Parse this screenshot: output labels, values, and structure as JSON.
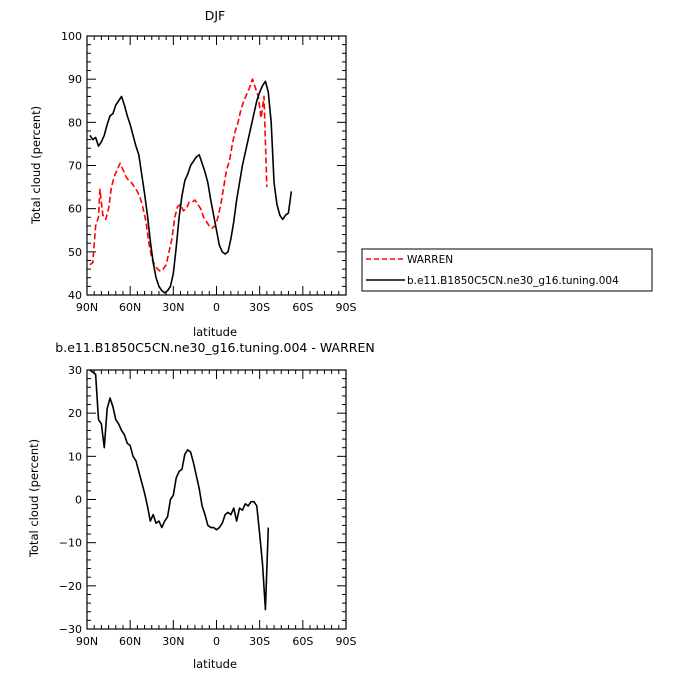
{
  "chart_data": [
    {
      "type": "line",
      "title": "DJF",
      "xlabel": "latitude",
      "ylabel": "Total cloud (percent)",
      "xlim": [
        90,
        -90
      ],
      "ylim": [
        40,
        100
      ],
      "x_tick_labels": [
        "90N",
        "60N",
        "30N",
        "0",
        "30S",
        "60S",
        "90S"
      ],
      "x_tick_values": [
        90,
        60,
        30,
        0,
        -30,
        -60,
        -90
      ],
      "y_tick_values": [
        40,
        50,
        60,
        70,
        80,
        90,
        100
      ],
      "legend_position": "right",
      "series": [
        {
          "name": "WARREN",
          "color": "#ff0000",
          "dash": "dashed",
          "points": [
            [
              88,
              47
            ],
            [
              86,
              47.5
            ],
            [
              84,
              56
            ],
            [
              82,
              58
            ],
            [
              81,
              64.5
            ],
            [
              79,
              58.5
            ],
            [
              77,
              57.5
            ],
            [
              75,
              60
            ],
            [
              73,
              65
            ],
            [
              71,
              67.5
            ],
            [
              69,
              69
            ],
            [
              67,
              70.5
            ],
            [
              65,
              69
            ],
            [
              63,
              67.5
            ],
            [
              61,
              66.5
            ],
            [
              59,
              66
            ],
            [
              57,
              65
            ],
            [
              55,
              64
            ],
            [
              53,
              62.5
            ],
            [
              51,
              60
            ],
            [
              49,
              57
            ],
            [
              47,
              52
            ],
            [
              45,
              48.5
            ],
            [
              43,
              47
            ],
            [
              41,
              46
            ],
            [
              39,
              45.5
            ],
            [
              37,
              46
            ],
            [
              35,
              47
            ],
            [
              33,
              50
            ],
            [
              31,
              53
            ],
            [
              29,
              58
            ],
            [
              27,
              60.5
            ],
            [
              25,
              61
            ],
            [
              23,
              59.5
            ],
            [
              21,
              60
            ],
            [
              19,
              61.5
            ],
            [
              17,
              61.5
            ],
            [
              15,
              62
            ],
            [
              13,
              61
            ],
            [
              11,
              60
            ],
            [
              9,
              58
            ],
            [
              7,
              57
            ],
            [
              5,
              56
            ],
            [
              3,
              55.5
            ],
            [
              1,
              56
            ],
            [
              -1,
              58
            ],
            [
              -3,
              61
            ],
            [
              -5,
              65
            ],
            [
              -7,
              69
            ],
            [
              -9,
              71
            ],
            [
              -11,
              75
            ],
            [
              -13,
              78
            ],
            [
              -15,
              80
            ],
            [
              -17,
              83
            ],
            [
              -19,
              85
            ],
            [
              -21,
              86.5
            ],
            [
              -23,
              88
            ],
            [
              -25,
              90
            ],
            [
              -27,
              88
            ],
            [
              -29,
              86
            ],
            [
              -31,
              81
            ],
            [
              -33,
              86
            ],
            [
              -35,
              65
            ]
          ]
        },
        {
          "name": "b.e11.B1850C5CN.ne30_g16.tuning.004",
          "color": "#000000",
          "dash": "solid",
          "points": [
            [
              88,
              77
            ],
            [
              86,
              76
            ],
            [
              84,
              76.5
            ],
            [
              82,
              74.5
            ],
            [
              80,
              75.5
            ],
            [
              78,
              77
            ],
            [
              76,
              79.5
            ],
            [
              74,
              81.5
            ],
            [
              72,
              82
            ],
            [
              70,
              84
            ],
            [
              68,
              85
            ],
            [
              66,
              86
            ],
            [
              64,
              84
            ],
            [
              62,
              81.5
            ],
            [
              60,
              79.5
            ],
            [
              58,
              77
            ],
            [
              56,
              74.5
            ],
            [
              54,
              72.5
            ],
            [
              52,
              68
            ],
            [
              50,
              63.5
            ],
            [
              48,
              58.5
            ],
            [
              46,
              52.5
            ],
            [
              44,
              47.5
            ],
            [
              42,
              44
            ],
            [
              40,
              42
            ],
            [
              38,
              41
            ],
            [
              36,
              40.5
            ],
            [
              34,
              41
            ],
            [
              32,
              42
            ],
            [
              30,
              45
            ],
            [
              28,
              51
            ],
            [
              26,
              58
            ],
            [
              24,
              63
            ],
            [
              22,
              66.5
            ],
            [
              20,
              68
            ],
            [
              18,
              70
            ],
            [
              16,
              71
            ],
            [
              14,
              72
            ],
            [
              12,
              72.5
            ],
            [
              10,
              70.5
            ],
            [
              8,
              68.5
            ],
            [
              6,
              66
            ],
            [
              4,
              62
            ],
            [
              2,
              58.5
            ],
            [
              0,
              55
            ],
            [
              -2,
              51.5
            ],
            [
              -4,
              50
            ],
            [
              -6,
              49.5
            ],
            [
              -8,
              50
            ],
            [
              -10,
              53
            ],
            [
              -12,
              57
            ],
            [
              -14,
              62
            ],
            [
              -16,
              66
            ],
            [
              -18,
              70
            ],
            [
              -20,
              73
            ],
            [
              -22,
              76
            ],
            [
              -24,
              79
            ],
            [
              -26,
              82
            ],
            [
              -28,
              85
            ],
            [
              -30,
              87
            ],
            [
              -32,
              88.5
            ],
            [
              -34,
              89.5
            ],
            [
              -36,
              87
            ],
            [
              -38,
              80
            ],
            [
              -40,
              66
            ],
            [
              -42,
              61
            ],
            [
              -44,
              58.5
            ],
            [
              -46,
              57.5
            ],
            [
              -48,
              58.5
            ],
            [
              -50,
              59
            ],
            [
              -52,
              64
            ]
          ]
        }
      ]
    },
    {
      "type": "line",
      "title": "b.e11.B1850C5CN.ne30_g16.tuning.004 - WARREN",
      "xlabel": "latitude",
      "ylabel": "Total cloud (percent)",
      "xlim": [
        90,
        -90
      ],
      "ylim": [
        -30,
        30
      ],
      "x_tick_labels": [
        "90N",
        "60N",
        "30N",
        "0",
        "30S",
        "60S",
        "90S"
      ],
      "x_tick_values": [
        90,
        60,
        30,
        0,
        -30,
        -60,
        -90
      ],
      "y_tick_values": [
        -30,
        -20,
        -10,
        0,
        10,
        20,
        30
      ],
      "y_tick_labels": [
        "−30",
        "−20",
        "−10",
        "0",
        "10",
        "20",
        "30"
      ],
      "series": [
        {
          "color": "#000000",
          "dash": "solid",
          "points": [
            [
              88,
              30
            ],
            [
              86,
              29.5
            ],
            [
              84,
              29
            ],
            [
              82,
              18.5
            ],
            [
              80,
              17.5
            ],
            [
              78,
              12
            ],
            [
              76,
              21
            ],
            [
              74,
              23.5
            ],
            [
              72,
              21.5
            ],
            [
              70,
              18.5
            ],
            [
              68,
              17.5
            ],
            [
              66,
              16
            ],
            [
              64,
              15
            ],
            [
              62,
              13
            ],
            [
              60,
              12.5
            ],
            [
              58,
              10
            ],
            [
              56,
              9
            ],
            [
              54,
              6.5
            ],
            [
              52,
              4
            ],
            [
              50,
              1.5
            ],
            [
              48,
              -1.5
            ],
            [
              46,
              -5
            ],
            [
              44,
              -3.5
            ],
            [
              42,
              -5.5
            ],
            [
              40,
              -5
            ],
            [
              38,
              -6.5
            ],
            [
              36,
              -5
            ],
            [
              34,
              -4
            ],
            [
              32,
              0
            ],
            [
              30,
              1
            ],
            [
              28,
              5
            ],
            [
              26,
              6.5
            ],
            [
              24,
              7
            ],
            [
              22,
              10.5
            ],
            [
              20,
              11.5
            ],
            [
              18,
              11
            ],
            [
              16,
              8.5
            ],
            [
              14,
              5.5
            ],
            [
              12,
              2.5
            ],
            [
              10,
              -1.5
            ],
            [
              8,
              -3.5
            ],
            [
              6,
              -6
            ],
            [
              4,
              -6.5
            ],
            [
              2,
              -6.5
            ],
            [
              0,
              -7
            ],
            [
              -2,
              -6.5
            ],
            [
              -4,
              -5.5
            ],
            [
              -6,
              -3.5
            ],
            [
              -8,
              -3
            ],
            [
              -10,
              -3.5
            ],
            [
              -12,
              -2
            ],
            [
              -14,
              -5
            ],
            [
              -16,
              -2
            ],
            [
              -18,
              -2.5
            ],
            [
              -20,
              -1
            ],
            [
              -22,
              -1.5
            ],
            [
              -24,
              -0.5
            ],
            [
              -26,
              -0.5
            ],
            [
              -28,
              -1.5
            ],
            [
              -30,
              -8
            ],
            [
              -32,
              -15
            ],
            [
              -34,
              -25.5
            ],
            [
              -36,
              -6.5
            ]
          ]
        }
      ]
    }
  ]
}
